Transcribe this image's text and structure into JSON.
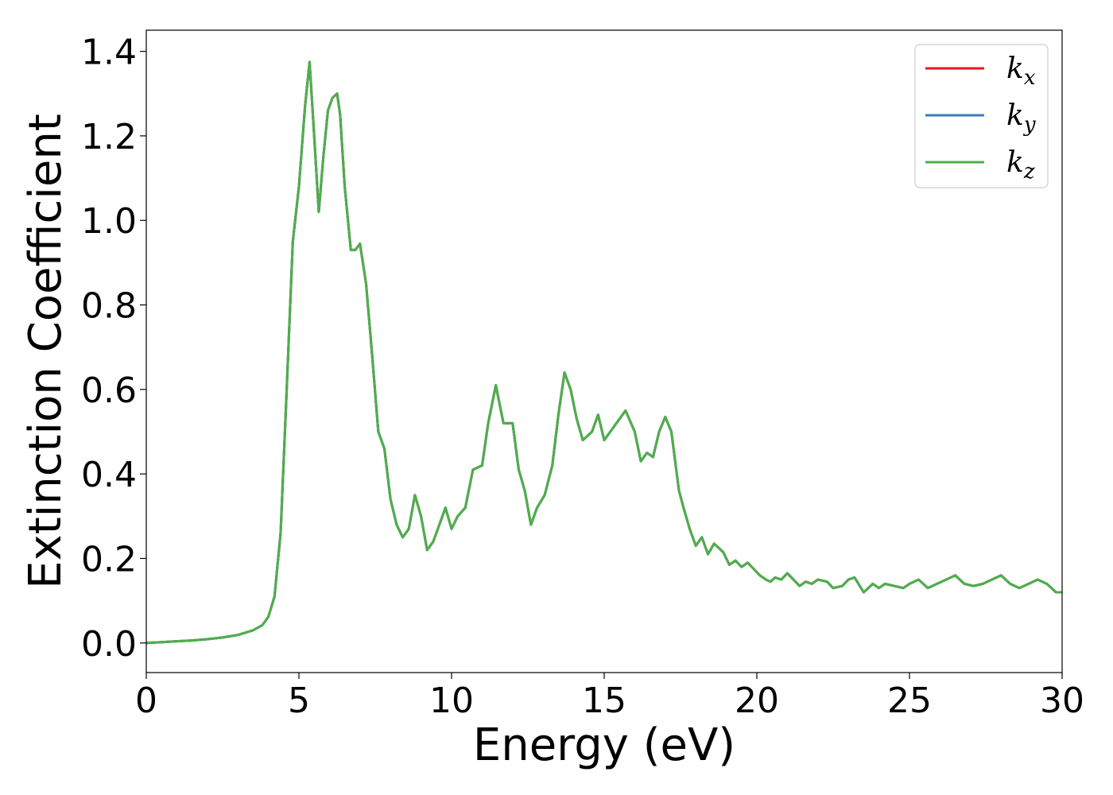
{
  "chart_data": {
    "type": "line",
    "xlabel": "Energy (eV)",
    "ylabel": "Extinction Coefficient",
    "xlim": [
      0,
      30
    ],
    "ylim": [
      -0.07,
      1.45
    ],
    "xticks": [
      0,
      5,
      10,
      15,
      20,
      25,
      30
    ],
    "xtick_labels": [
      "0",
      "5",
      "10",
      "15",
      "20",
      "25",
      "30"
    ],
    "yticks": [
      0.0,
      0.2,
      0.4,
      0.6,
      0.8,
      1.0,
      1.2,
      1.4
    ],
    "ytick_labels": [
      "0.0",
      "0.2",
      "0.4",
      "0.6",
      "0.8",
      "1.0",
      "1.2",
      "1.4"
    ],
    "grid": false,
    "legend_position": "top-right",
    "x": [
      0,
      0.5,
      1,
      1.5,
      2,
      2.5,
      3,
      3.5,
      3.8,
      4.0,
      4.2,
      4.4,
      4.6,
      4.8,
      5.0,
      5.2,
      5.35,
      5.5,
      5.65,
      5.8,
      5.95,
      6.1,
      6.25,
      6.35,
      6.5,
      6.7,
      6.85,
      7.0,
      7.2,
      7.4,
      7.6,
      7.8,
      8.0,
      8.2,
      8.4,
      8.6,
      8.8,
      9.0,
      9.2,
      9.4,
      9.6,
      9.8,
      10.0,
      10.2,
      10.45,
      10.7,
      11.0,
      11.2,
      11.45,
      11.7,
      12.0,
      12.2,
      12.4,
      12.6,
      12.8,
      13.05,
      13.3,
      13.5,
      13.7,
      13.9,
      14.1,
      14.3,
      14.6,
      14.8,
      15.0,
      15.2,
      15.5,
      15.7,
      16.0,
      16.2,
      16.4,
      16.6,
      16.8,
      17.0,
      17.2,
      17.45,
      17.6,
      17.8,
      18.0,
      18.2,
      18.4,
      18.6,
      18.9,
      19.1,
      19.3,
      19.5,
      19.7,
      19.9,
      20.1,
      20.3,
      20.45,
      20.6,
      20.8,
      21.0,
      21.2,
      21.4,
      21.6,
      21.8,
      22.0,
      22.3,
      22.5,
      22.8,
      23.0,
      23.2,
      23.5,
      23.8,
      24.0,
      24.2,
      24.5,
      24.8,
      25.0,
      25.3,
      25.6,
      25.9,
      26.2,
      26.5,
      26.8,
      27.1,
      27.4,
      27.7,
      28.0,
      28.3,
      28.6,
      28.9,
      29.2,
      29.5,
      29.8,
      30.0
    ],
    "series": [
      {
        "name": "k_x",
        "color": "#e41a1c",
        "y": [
          0.0,
          0.002,
          0.004,
          0.006,
          0.009,
          0.013,
          0.019,
          0.03,
          0.042,
          0.062,
          0.11,
          0.26,
          0.6,
          0.95,
          1.08,
          1.27,
          1.375,
          1.2,
          1.02,
          1.15,
          1.26,
          1.29,
          1.3,
          1.25,
          1.08,
          0.93,
          0.93,
          0.945,
          0.85,
          0.68,
          0.5,
          0.46,
          0.34,
          0.28,
          0.25,
          0.27,
          0.35,
          0.3,
          0.22,
          0.24,
          0.28,
          0.32,
          0.27,
          0.3,
          0.32,
          0.41,
          0.42,
          0.52,
          0.61,
          0.52,
          0.52,
          0.41,
          0.36,
          0.28,
          0.32,
          0.35,
          0.42,
          0.54,
          0.64,
          0.6,
          0.53,
          0.48,
          0.5,
          0.54,
          0.48,
          0.5,
          0.53,
          0.55,
          0.5,
          0.43,
          0.45,
          0.44,
          0.5,
          0.535,
          0.5,
          0.36,
          0.32,
          0.27,
          0.23,
          0.25,
          0.21,
          0.235,
          0.215,
          0.185,
          0.195,
          0.18,
          0.19,
          0.175,
          0.16,
          0.15,
          0.145,
          0.155,
          0.15,
          0.165,
          0.15,
          0.135,
          0.145,
          0.14,
          0.15,
          0.145,
          0.13,
          0.135,
          0.15,
          0.155,
          0.12,
          0.14,
          0.13,
          0.14,
          0.135,
          0.13,
          0.14,
          0.15,
          0.13,
          0.14,
          0.15,
          0.16,
          0.14,
          0.135,
          0.14,
          0.15,
          0.16,
          0.14,
          0.13,
          0.14,
          0.15,
          0.14,
          0.12,
          0.12
        ]
      },
      {
        "name": "k_y",
        "color": "#377eb8",
        "y": [
          0.0,
          0.002,
          0.004,
          0.006,
          0.009,
          0.013,
          0.019,
          0.03,
          0.042,
          0.062,
          0.11,
          0.26,
          0.6,
          0.95,
          1.08,
          1.27,
          1.375,
          1.2,
          1.02,
          1.15,
          1.26,
          1.29,
          1.3,
          1.25,
          1.08,
          0.93,
          0.93,
          0.945,
          0.85,
          0.68,
          0.5,
          0.46,
          0.34,
          0.28,
          0.25,
          0.27,
          0.35,
          0.3,
          0.22,
          0.24,
          0.28,
          0.32,
          0.27,
          0.3,
          0.32,
          0.41,
          0.42,
          0.52,
          0.61,
          0.52,
          0.52,
          0.41,
          0.36,
          0.28,
          0.32,
          0.35,
          0.42,
          0.54,
          0.64,
          0.6,
          0.53,
          0.48,
          0.5,
          0.54,
          0.48,
          0.5,
          0.53,
          0.55,
          0.5,
          0.43,
          0.45,
          0.44,
          0.5,
          0.535,
          0.5,
          0.36,
          0.32,
          0.27,
          0.23,
          0.25,
          0.21,
          0.235,
          0.215,
          0.185,
          0.195,
          0.18,
          0.19,
          0.175,
          0.16,
          0.15,
          0.145,
          0.155,
          0.15,
          0.165,
          0.15,
          0.135,
          0.145,
          0.14,
          0.15,
          0.145,
          0.13,
          0.135,
          0.15,
          0.155,
          0.12,
          0.14,
          0.13,
          0.14,
          0.135,
          0.13,
          0.14,
          0.15,
          0.13,
          0.14,
          0.15,
          0.16,
          0.14,
          0.135,
          0.14,
          0.15,
          0.16,
          0.14,
          0.13,
          0.14,
          0.15,
          0.14,
          0.12,
          0.12
        ]
      },
      {
        "name": "k_z",
        "color": "#4daf4a",
        "y": [
          0.0,
          0.002,
          0.004,
          0.006,
          0.009,
          0.013,
          0.019,
          0.03,
          0.042,
          0.062,
          0.11,
          0.26,
          0.6,
          0.95,
          1.08,
          1.27,
          1.375,
          1.2,
          1.02,
          1.15,
          1.26,
          1.29,
          1.3,
          1.25,
          1.08,
          0.93,
          0.93,
          0.945,
          0.85,
          0.68,
          0.5,
          0.46,
          0.34,
          0.28,
          0.25,
          0.27,
          0.35,
          0.3,
          0.22,
          0.24,
          0.28,
          0.32,
          0.27,
          0.3,
          0.32,
          0.41,
          0.42,
          0.52,
          0.61,
          0.52,
          0.52,
          0.41,
          0.36,
          0.28,
          0.32,
          0.35,
          0.42,
          0.54,
          0.64,
          0.6,
          0.53,
          0.48,
          0.5,
          0.54,
          0.48,
          0.5,
          0.53,
          0.55,
          0.5,
          0.43,
          0.45,
          0.44,
          0.5,
          0.535,
          0.5,
          0.36,
          0.32,
          0.27,
          0.23,
          0.25,
          0.21,
          0.235,
          0.215,
          0.185,
          0.195,
          0.18,
          0.19,
          0.175,
          0.16,
          0.15,
          0.145,
          0.155,
          0.15,
          0.165,
          0.15,
          0.135,
          0.145,
          0.14,
          0.15,
          0.145,
          0.13,
          0.135,
          0.15,
          0.155,
          0.12,
          0.14,
          0.13,
          0.14,
          0.135,
          0.13,
          0.14,
          0.15,
          0.13,
          0.14,
          0.15,
          0.16,
          0.14,
          0.135,
          0.14,
          0.15,
          0.16,
          0.14,
          0.13,
          0.14,
          0.15,
          0.14,
          0.12,
          0.12
        ]
      }
    ],
    "legend": [
      {
        "base": "k",
        "sub": "x",
        "color": "#e41a1c"
      },
      {
        "base": "k",
        "sub": "y",
        "color": "#377eb8"
      },
      {
        "base": "k",
        "sub": "z",
        "color": "#4daf4a"
      }
    ]
  }
}
